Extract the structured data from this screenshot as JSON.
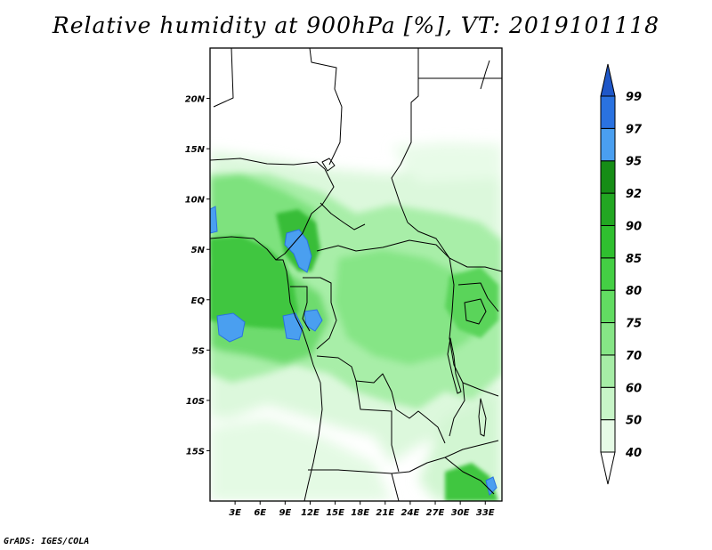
{
  "title": "Relative humidity at 900hPa [%], VT: 2019101118",
  "credit": "GrADS: IGES/COLA",
  "map": {
    "lon_range": [
      0,
      35
    ],
    "lat_range": [
      -20,
      25
    ],
    "x_ticks": [
      {
        "lon": 3,
        "label": "3E"
      },
      {
        "lon": 6,
        "label": "6E"
      },
      {
        "lon": 9,
        "label": "9E"
      },
      {
        "lon": 12,
        "label": "12E"
      },
      {
        "lon": 15,
        "label": "15E"
      },
      {
        "lon": 18,
        "label": "18E"
      },
      {
        "lon": 21,
        "label": "21E"
      },
      {
        "lon": 24,
        "label": "24E"
      },
      {
        "lon": 27,
        "label": "27E"
      },
      {
        "lon": 30,
        "label": "30E"
      },
      {
        "lon": 33,
        "label": "33E"
      }
    ],
    "y_ticks": [
      {
        "lat": 20,
        "label": "20N"
      },
      {
        "lat": 15,
        "label": "15N"
      },
      {
        "lat": 10,
        "label": "10N"
      },
      {
        "lat": 5,
        "label": "5N"
      },
      {
        "lat": 0,
        "label": "EQ"
      },
      {
        "lat": -5,
        "label": "5S"
      },
      {
        "lat": -10,
        "label": "10S"
      },
      {
        "lat": -15,
        "label": "15S"
      }
    ]
  },
  "colorbar": {
    "levels": [
      "40",
      "50",
      "60",
      "70",
      "75",
      "80",
      "85",
      "90",
      "92",
      "95",
      "97",
      "99"
    ],
    "colors": [
      "#ffffff",
      "#e6fbe6",
      "#c8f5c8",
      "#a6eda6",
      "#86e586",
      "#62dc62",
      "#44cf44",
      "#2fbf2f",
      "#22a722",
      "#168d16",
      "#4a9ff0",
      "#2a72e0",
      "#1f57c8"
    ]
  }
}
